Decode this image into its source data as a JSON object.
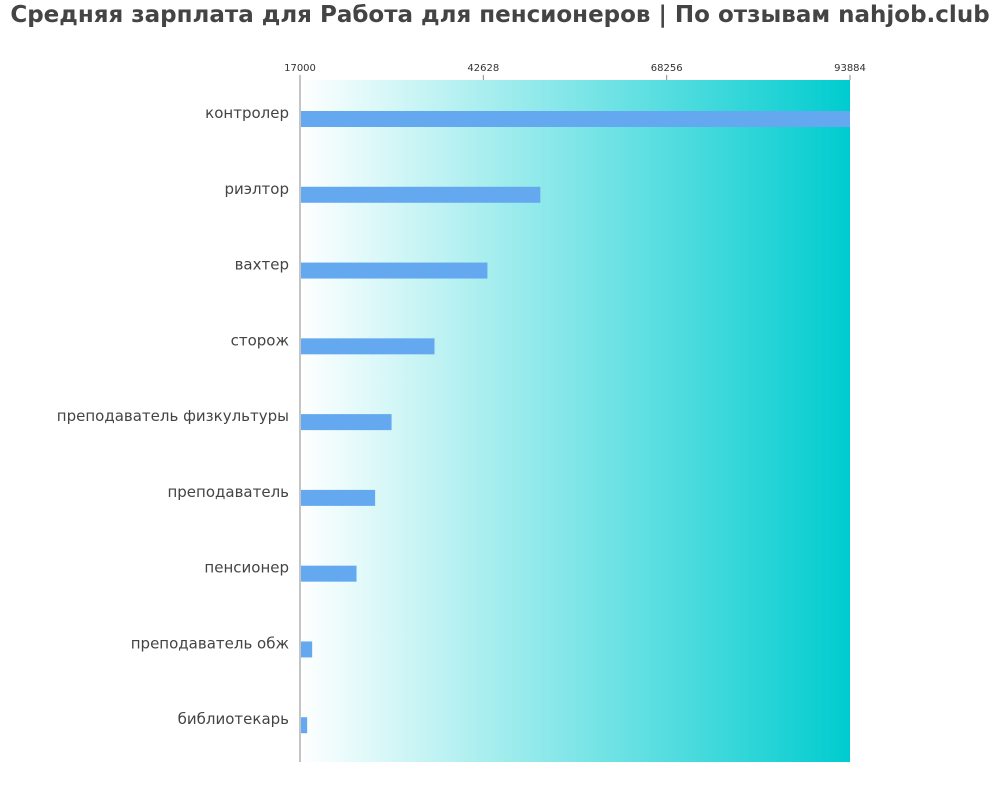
{
  "title": "Средняя зарплата для Работа для пенсионеров | По отзывам nahjob.club",
  "chart_data": {
    "type": "bar",
    "orientation": "horizontal",
    "title": "Средняя зарплата для Работа для пенсионеров | По отзывам nahjob.club",
    "xlabel": "",
    "ylabel": "",
    "xlim": [
      17000,
      93884
    ],
    "ticks": [
      17000,
      42628,
      68256,
      93884
    ],
    "tick_position": "top",
    "grid": false,
    "categories": [
      "контролер",
      "риэлтор",
      "вахтер",
      "сторож",
      "преподаватель физкультуры",
      "преподаватель",
      "пенсионер",
      "преподаватель обж",
      "библиотекарь"
    ],
    "values": [
      93884,
      50600,
      43200,
      35800,
      29800,
      27500,
      24900,
      18700,
      18000
    ],
    "bar_color": "#64a9f0",
    "background_gradient": [
      "#ffffff",
      "#00cccf"
    ]
  }
}
